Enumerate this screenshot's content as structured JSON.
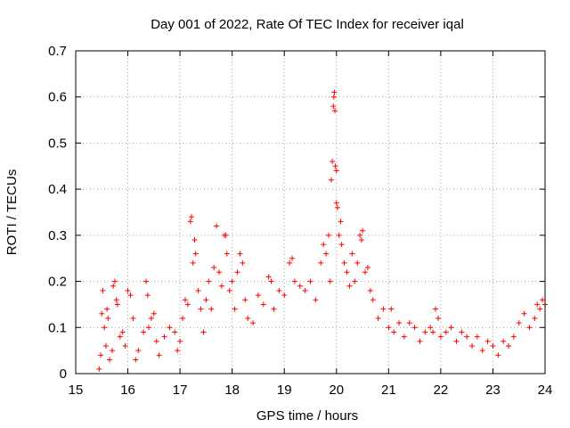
{
  "chart_data": {
    "type": "scatter",
    "title": "Day 001 of 2022, Rate Of TEC Index for receiver iqal",
    "xlabel": "GPS time / hours",
    "ylabel": "ROTI / TECUs",
    "xlim": [
      15,
      24
    ],
    "ylim": [
      0,
      0.7
    ],
    "x_ticks": [
      "15",
      "16",
      "17",
      "18",
      "19",
      "20",
      "21",
      "22",
      "23",
      "24"
    ],
    "y_ticks": [
      "0",
      "0.1",
      "0.2",
      "0.3",
      "0.4",
      "0.5",
      "0.6",
      "0.7"
    ],
    "grid": true,
    "marker": "+",
    "color": "#ff0000",
    "series": [
      {
        "points": [
          [
            15.45,
            0.01
          ],
          [
            15.48,
            0.04
          ],
          [
            15.5,
            0.13
          ],
          [
            15.52,
            0.18
          ],
          [
            15.55,
            0.1
          ],
          [
            15.58,
            0.06
          ],
          [
            15.6,
            0.14
          ],
          [
            15.62,
            0.12
          ],
          [
            15.65,
            0.03
          ],
          [
            15.7,
            0.05
          ],
          [
            15.72,
            0.19
          ],
          [
            15.75,
            0.2
          ],
          [
            15.78,
            0.16
          ],
          [
            15.8,
            0.15
          ],
          [
            15.85,
            0.08
          ],
          [
            15.9,
            0.09
          ],
          [
            15.95,
            0.06
          ],
          [
            16.0,
            0.18
          ],
          [
            16.05,
            0.17
          ],
          [
            16.1,
            0.12
          ],
          [
            16.15,
            0.03
          ],
          [
            16.2,
            0.05
          ],
          [
            16.3,
            0.09
          ],
          [
            16.35,
            0.2
          ],
          [
            16.38,
            0.17
          ],
          [
            16.4,
            0.1
          ],
          [
            16.45,
            0.12
          ],
          [
            16.5,
            0.13
          ],
          [
            16.55,
            0.07
          ],
          [
            16.6,
            0.04
          ],
          [
            16.7,
            0.08
          ],
          [
            16.8,
            0.1
          ],
          [
            16.9,
            0.09
          ],
          [
            16.95,
            0.05
          ],
          [
            17.0,
            0.07
          ],
          [
            17.05,
            0.12
          ],
          [
            17.1,
            0.16
          ],
          [
            17.15,
            0.15
          ],
          [
            17.2,
            0.33
          ],
          [
            17.22,
            0.34
          ],
          [
            17.25,
            0.24
          ],
          [
            17.28,
            0.29
          ],
          [
            17.3,
            0.26
          ],
          [
            17.35,
            0.18
          ],
          [
            17.4,
            0.14
          ],
          [
            17.45,
            0.09
          ],
          [
            17.5,
            0.16
          ],
          [
            17.55,
            0.2
          ],
          [
            17.6,
            0.14
          ],
          [
            17.65,
            0.23
          ],
          [
            17.7,
            0.32
          ],
          [
            17.75,
            0.22
          ],
          [
            17.8,
            0.19
          ],
          [
            17.85,
            0.3
          ],
          [
            17.88,
            0.3
          ],
          [
            17.9,
            0.26
          ],
          [
            17.95,
            0.18
          ],
          [
            18.0,
            0.2
          ],
          [
            18.05,
            0.14
          ],
          [
            18.1,
            0.22
          ],
          [
            18.15,
            0.26
          ],
          [
            18.2,
            0.24
          ],
          [
            18.25,
            0.16
          ],
          [
            18.3,
            0.12
          ],
          [
            18.4,
            0.11
          ],
          [
            18.5,
            0.17
          ],
          [
            18.6,
            0.15
          ],
          [
            18.7,
            0.21
          ],
          [
            18.75,
            0.2
          ],
          [
            18.8,
            0.14
          ],
          [
            18.9,
            0.18
          ],
          [
            19.0,
            0.17
          ],
          [
            19.1,
            0.24
          ],
          [
            19.15,
            0.25
          ],
          [
            19.2,
            0.2
          ],
          [
            19.3,
            0.19
          ],
          [
            19.4,
            0.18
          ],
          [
            19.5,
            0.2
          ],
          [
            19.6,
            0.16
          ],
          [
            19.7,
            0.24
          ],
          [
            19.75,
            0.28
          ],
          [
            19.8,
            0.26
          ],
          [
            19.85,
            0.3
          ],
          [
            19.88,
            0.2
          ],
          [
            19.9,
            0.42
          ],
          [
            19.92,
            0.46
          ],
          [
            19.94,
            0.58
          ],
          [
            19.95,
            0.6
          ],
          [
            19.96,
            0.61
          ],
          [
            19.97,
            0.57
          ],
          [
            19.98,
            0.45
          ],
          [
            20.0,
            0.44
          ],
          [
            20.0,
            0.37
          ],
          [
            20.02,
            0.36
          ],
          [
            20.05,
            0.3
          ],
          [
            20.08,
            0.33
          ],
          [
            20.1,
            0.28
          ],
          [
            20.15,
            0.24
          ],
          [
            20.2,
            0.22
          ],
          [
            20.25,
            0.19
          ],
          [
            20.3,
            0.26
          ],
          [
            20.35,
            0.2
          ],
          [
            20.4,
            0.24
          ],
          [
            20.45,
            0.3
          ],
          [
            20.48,
            0.29
          ],
          [
            20.5,
            0.31
          ],
          [
            20.55,
            0.22
          ],
          [
            20.6,
            0.23
          ],
          [
            20.65,
            0.18
          ],
          [
            20.7,
            0.16
          ],
          [
            20.8,
            0.12
          ],
          [
            20.9,
            0.14
          ],
          [
            21.0,
            0.1
          ],
          [
            21.05,
            0.14
          ],
          [
            21.1,
            0.09
          ],
          [
            21.2,
            0.11
          ],
          [
            21.3,
            0.08
          ],
          [
            21.4,
            0.11
          ],
          [
            21.5,
            0.1
          ],
          [
            21.6,
            0.07
          ],
          [
            21.7,
            0.09
          ],
          [
            21.8,
            0.1
          ],
          [
            21.85,
            0.09
          ],
          [
            21.9,
            0.14
          ],
          [
            21.95,
            0.12
          ],
          [
            22.0,
            0.08
          ],
          [
            22.1,
            0.09
          ],
          [
            22.2,
            0.1
          ],
          [
            22.3,
            0.07
          ],
          [
            22.4,
            0.09
          ],
          [
            22.5,
            0.08
          ],
          [
            22.6,
            0.06
          ],
          [
            22.7,
            0.08
          ],
          [
            22.8,
            0.05
          ],
          [
            22.9,
            0.07
          ],
          [
            23.0,
            0.06
          ],
          [
            23.1,
            0.04
          ],
          [
            23.2,
            0.07
          ],
          [
            23.3,
            0.06
          ],
          [
            23.4,
            0.08
          ],
          [
            23.5,
            0.11
          ],
          [
            23.6,
            0.13
          ],
          [
            23.7,
            0.1
          ],
          [
            23.8,
            0.12
          ],
          [
            23.85,
            0.15
          ],
          [
            23.9,
            0.14
          ],
          [
            23.95,
            0.16
          ],
          [
            24.0,
            0.15
          ]
        ]
      }
    ]
  }
}
